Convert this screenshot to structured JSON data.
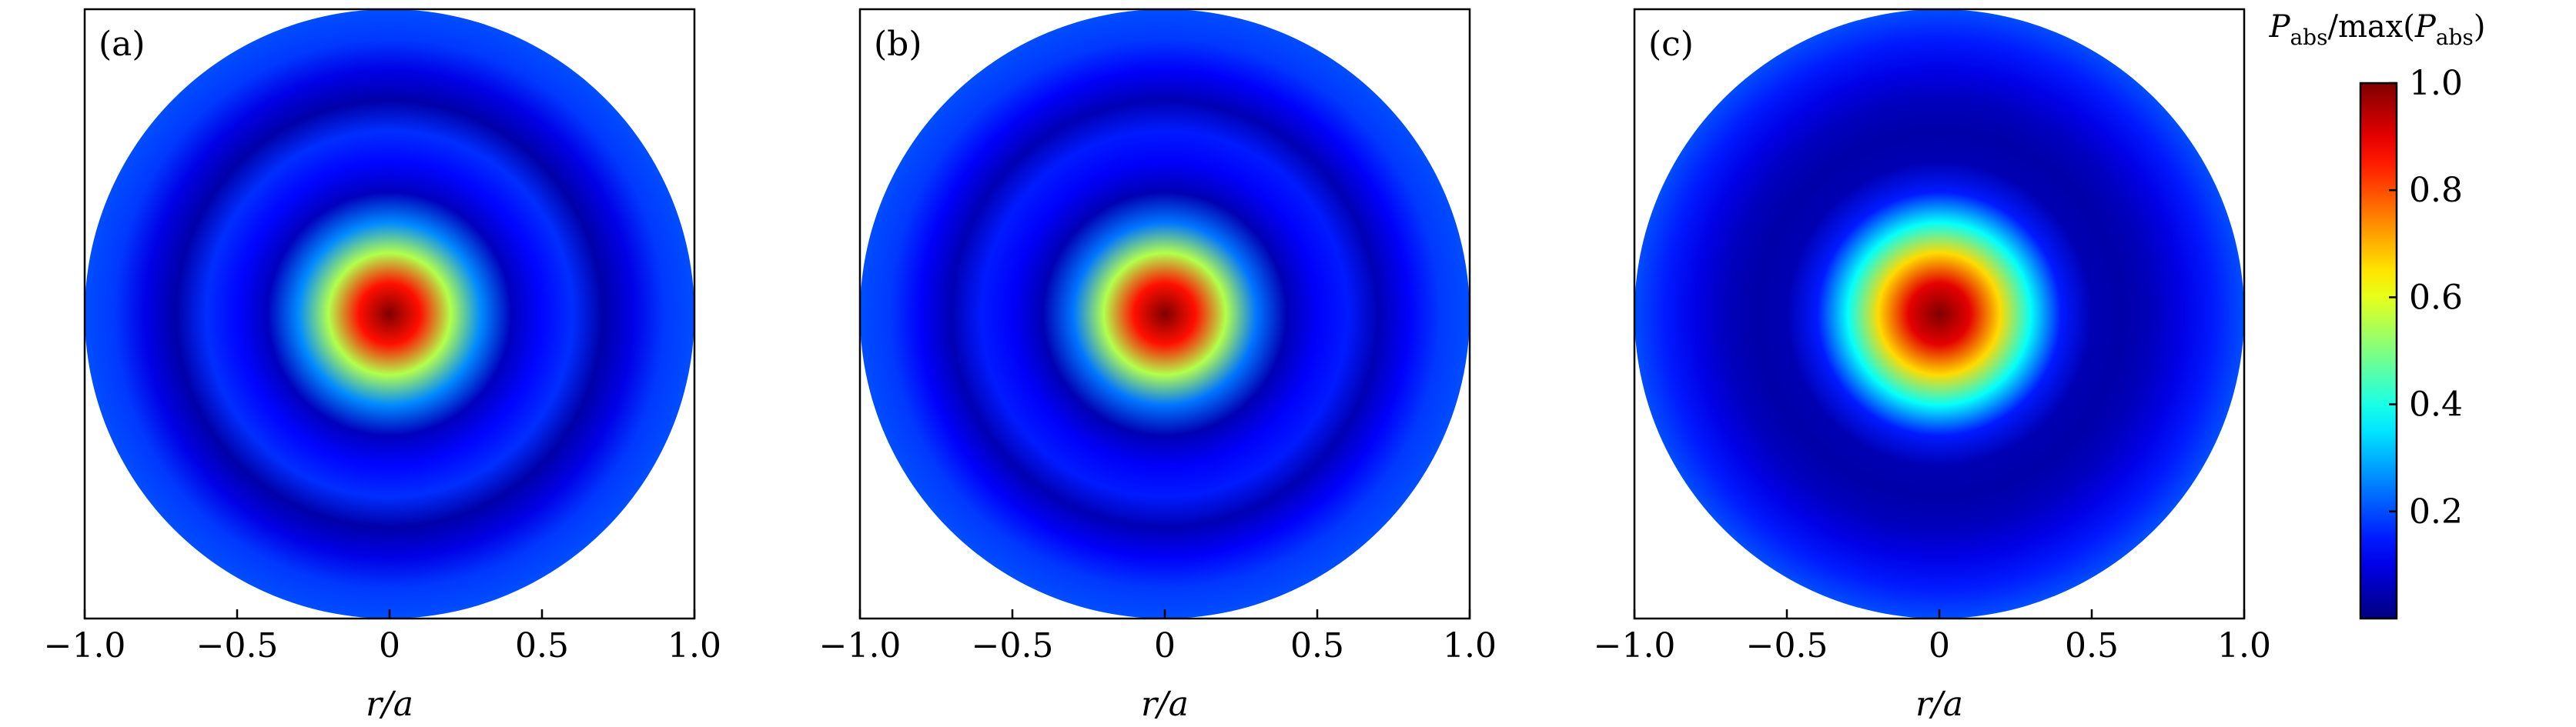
{
  "chart_data": [
    {
      "type": "heatmap",
      "panel_label": "(a)",
      "xlabel": "r/a",
      "xlim": [
        -1.0,
        1.0
      ],
      "xticks": [
        "−1.0",
        "−0.5",
        "0",
        "0.5",
        "1.0"
      ],
      "normalized_profile": {
        "r_over_a": [
          0.0,
          0.1,
          0.2,
          0.3,
          0.4,
          0.5,
          0.6,
          0.7,
          0.8,
          0.9,
          1.0
        ],
        "value": [
          1.0,
          0.86,
          0.55,
          0.26,
          0.06,
          0.13,
          0.17,
          0.04,
          0.1,
          0.18,
          0.2
        ]
      }
    },
    {
      "type": "heatmap",
      "panel_label": "(b)",
      "xlabel": "r/a",
      "xlim": [
        -1.0,
        1.0
      ],
      "xticks": [
        "−1.0",
        "−0.5",
        "0",
        "0.5",
        "1.0"
      ],
      "normalized_profile": {
        "r_over_a": [
          0.0,
          0.1,
          0.2,
          0.3,
          0.4,
          0.5,
          0.6,
          0.7,
          0.8,
          0.9,
          1.0
        ],
        "value": [
          1.0,
          0.86,
          0.55,
          0.24,
          0.05,
          0.12,
          0.15,
          0.05,
          0.12,
          0.18,
          0.2
        ]
      }
    },
    {
      "type": "heatmap",
      "panel_label": "(c)",
      "xlabel": "r/a",
      "xlim": [
        -1.0,
        1.0
      ],
      "xticks": [
        "−1.0",
        "−0.5",
        "0",
        "0.5",
        "1.0"
      ],
      "normalized_profile": {
        "r_over_a": [
          0.0,
          0.1,
          0.2,
          0.3,
          0.4,
          0.5,
          0.6,
          0.7,
          0.8,
          0.9,
          1.0
        ],
        "value": [
          1.0,
          0.9,
          0.66,
          0.38,
          0.15,
          0.05,
          0.04,
          0.06,
          0.1,
          0.15,
          0.2
        ]
      }
    }
  ],
  "colorbar": {
    "title_parts": {
      "p1": "P",
      "s1": "abs",
      "mid": "/max(",
      "p2": "P",
      "s2": "abs",
      "end": ")"
    },
    "range": [
      0.0,
      1.0
    ],
    "ticks": [
      {
        "value": 1.0,
        "label": "1.0"
      },
      {
        "value": 0.8,
        "label": "0.8"
      },
      {
        "value": 0.6,
        "label": "0.6"
      },
      {
        "value": 0.4,
        "label": "0.4"
      },
      {
        "value": 0.2,
        "label": "0.2"
      }
    ],
    "colormap": "jet"
  }
}
